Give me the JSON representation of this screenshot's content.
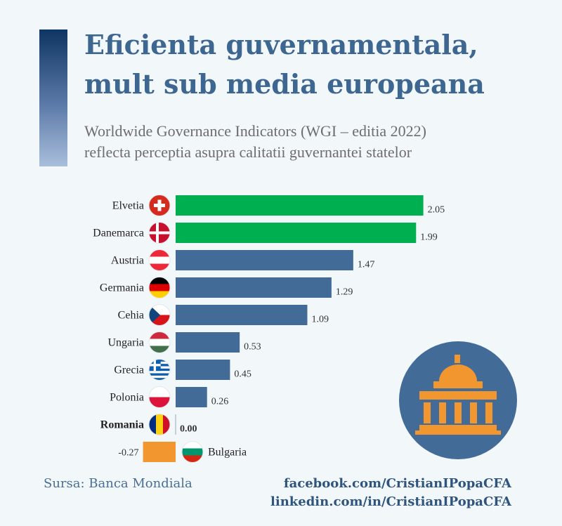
{
  "header": {
    "title_line1": "Eficienta guvernamentala,",
    "title_line2": "mult sub media europeana",
    "subtitle_line1": "Worldwide Governance Indicators (WGI – editia 2022)",
    "subtitle_line2": "reflecta perceptia asupra calitatii guvernantei statelor"
  },
  "chart_data": {
    "type": "bar",
    "orientation": "horizontal",
    "categories": [
      "Elvetia",
      "Danemarca",
      "Austria",
      "Germania",
      "Cehia",
      "Ungaria",
      "Grecia",
      "Polonia",
      "Romania",
      "Bulgaria"
    ],
    "values": [
      2.05,
      1.99,
      1.47,
      1.29,
      1.09,
      0.53,
      0.45,
      0.26,
      0.0,
      -0.27
    ],
    "value_labels": [
      "2.05",
      "1.99",
      "1.47",
      "1.29",
      "1.09",
      "0.53",
      "0.45",
      "0.26",
      "0.00",
      "-0.27"
    ],
    "bar_colors": [
      "#00b050",
      "#00b050",
      "#426b97",
      "#426b97",
      "#426b97",
      "#426b97",
      "#426b97",
      "#426b97",
      "#426b97",
      "#f2962f"
    ],
    "highlight": "Romania",
    "flags": [
      "switzerland-flag-icon",
      "denmark-flag-icon",
      "austria-flag-icon",
      "germany-flag-icon",
      "czechia-flag-icon",
      "hungary-flag-icon",
      "greece-flag-icon",
      "poland-flag-icon",
      "romania-flag-icon",
      "bulgaria-flag-icon"
    ],
    "grid": false,
    "legend": "none"
  },
  "footer": {
    "source": "Sursa: Banca Mondiala",
    "facebook": "facebook.com/CristianIPopaCFA",
    "linkedin": "linkedin.com/in/CristianIPopaCFA"
  },
  "colors": {
    "positive_top": "#00b050",
    "bar": "#426b97",
    "negative": "#f2962f",
    "title": "#3d6691",
    "icon_circle": "#426b97",
    "icon_fill": "#f2962f"
  },
  "icons": {
    "government": "government-building-icon"
  }
}
